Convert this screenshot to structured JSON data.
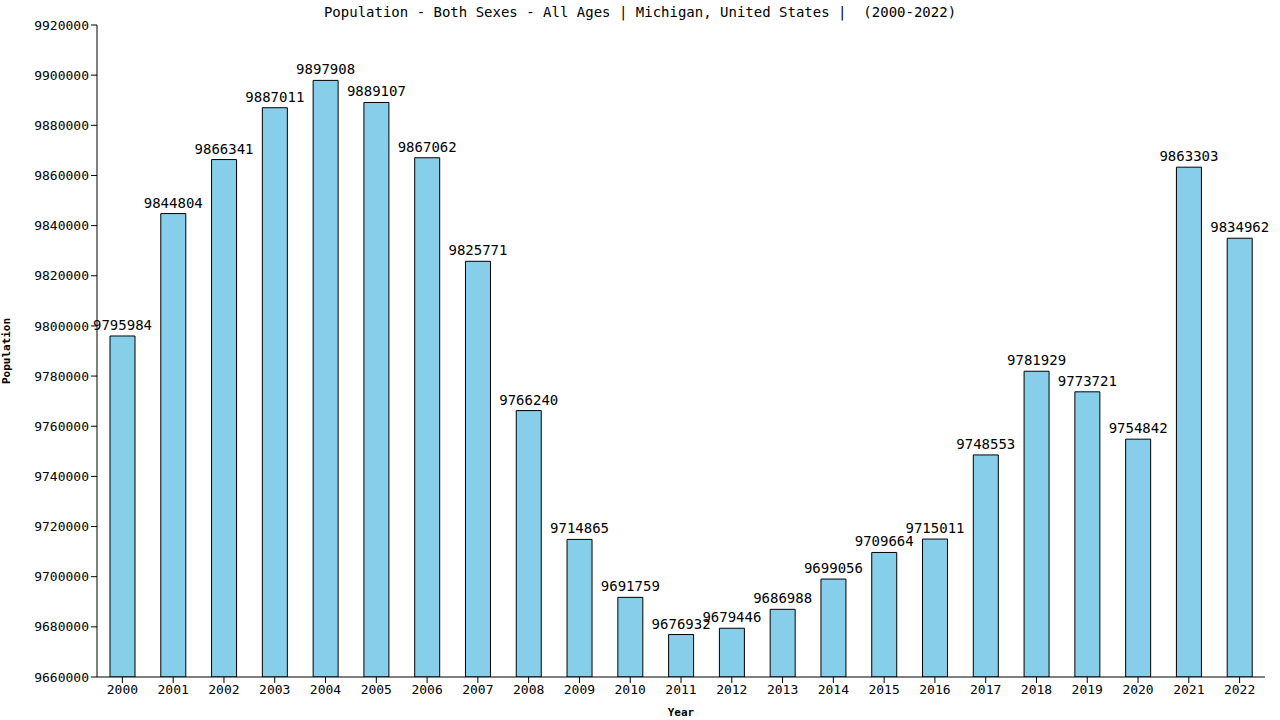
{
  "chart_data": {
    "type": "bar",
    "title": "Population - Both Sexes - All Ages | Michigan, United States |  (2000-2022)",
    "x_label": "Year",
    "y_label": "Population",
    "categories": [
      "2000",
      "2001",
      "2002",
      "2003",
      "2004",
      "2005",
      "2006",
      "2007",
      "2008",
      "2009",
      "2010",
      "2011",
      "2012",
      "2013",
      "2014",
      "2015",
      "2016",
      "2017",
      "2018",
      "2019",
      "2020",
      "2021",
      "2022"
    ],
    "values": [
      9795984,
      9844804,
      9866341,
      9887011,
      9897908,
      9889107,
      9867062,
      9825771,
      9766240,
      9714865,
      9691759,
      9676932,
      9679446,
      9686988,
      9699056,
      9709664,
      9715011,
      9748553,
      9781929,
      9773721,
      9754842,
      9863303,
      9834962
    ],
    "color": "#87ceeb",
    "ylim": [
      9660000,
      9920000
    ],
    "yticks": [
      9660000,
      9680000,
      9700000,
      9720000,
      9740000,
      9760000,
      9780000,
      9800000,
      9820000,
      9840000,
      9860000,
      9880000,
      9900000,
      9920000
    ],
    "grid": false,
    "data_labels": true
  }
}
